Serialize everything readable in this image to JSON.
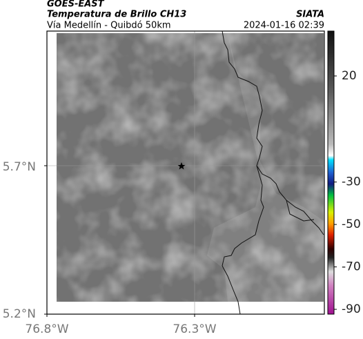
{
  "header": {
    "title": "GOES-EAST",
    "subtitle": "Temperatura de Brillo CH13",
    "source": "SIATA",
    "location": "Vía Medellín - Quibdó 50km",
    "datetime": "2024-01-16 02:39"
  },
  "map": {
    "lat_ticks": [
      "5.7°N",
      "5.2°N"
    ],
    "lon_ticks": [
      "76.8°W",
      "76.3°W"
    ]
  },
  "colorbar": {
    "ticks": [
      20,
      -30,
      -50,
      -70,
      -90
    ]
  }
}
